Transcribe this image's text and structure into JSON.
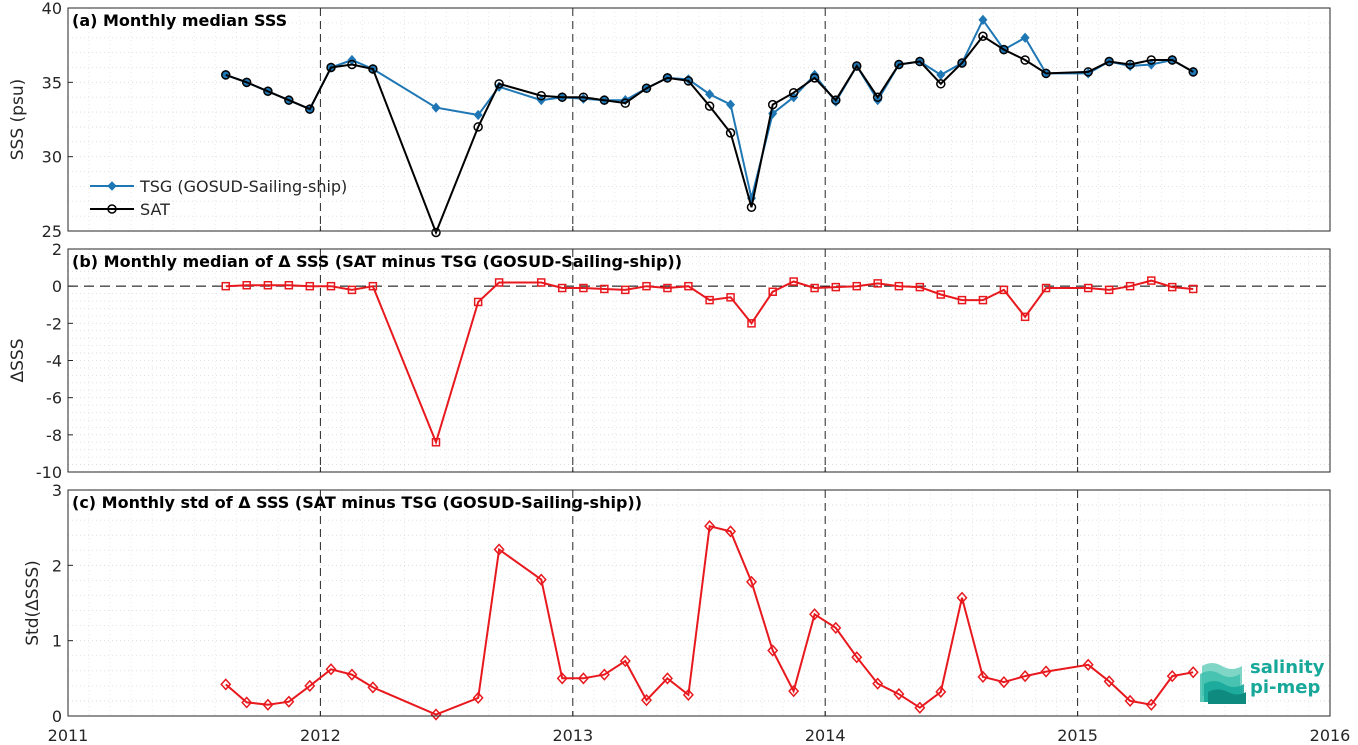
{
  "colors": {
    "tsg": "#1f77b4",
    "sat": "#000000",
    "delta": "#e8191e",
    "logo": "#17a89a"
  },
  "logo": {
    "line1": "salinity",
    "line2": "pi-mep"
  },
  "chart_data": [
    {
      "type": "line",
      "title": "(a) Monthly median SSS",
      "xlabel": "",
      "ylabel": "SSS (psu)",
      "xlim": [
        2011,
        2016
      ],
      "ylim": [
        25,
        40
      ],
      "yticks": [
        25,
        30,
        35,
        40
      ],
      "grid": true,
      "legend_position": "left",
      "series": [
        {
          "name": "TSG (GOSUD-Sailing-ship)",
          "marker": "diamond",
          "x": [
            2011.625,
            2011.708,
            2011.792,
            2011.875,
            2011.958,
            2012.042,
            2012.125,
            2012.208,
            2012.458,
            2012.625,
            2012.708,
            2012.875,
            2012.958,
            2013.042,
            2013.125,
            2013.208,
            2013.292,
            2013.375,
            2013.458,
            2013.542,
            2013.625,
            2013.708,
            2013.792,
            2013.875,
            2013.958,
            2014.042,
            2014.125,
            2014.208,
            2014.292,
            2014.375,
            2014.458,
            2014.542,
            2014.625,
            2014.708,
            2014.792,
            2014.875,
            2015.042,
            2015.125,
            2015.208,
            2015.292,
            2015.375,
            2015.458
          ],
          "y": [
            35.5,
            35.0,
            34.4,
            33.8,
            33.2,
            36.0,
            36.5,
            35.9,
            33.3,
            32.8,
            34.7,
            33.8,
            34.0,
            33.9,
            33.8,
            33.8,
            34.6,
            35.3,
            35.2,
            34.2,
            33.5,
            27.2,
            32.9,
            34.0,
            35.5,
            33.7,
            36.1,
            33.8,
            36.2,
            36.4,
            35.5,
            36.3,
            39.2,
            37.2,
            38.0,
            35.6,
            35.6,
            36.4,
            36.1,
            36.2,
            36.5,
            35.7
          ]
        },
        {
          "name": "SAT",
          "marker": "circle",
          "x": [
            2011.625,
            2011.708,
            2011.792,
            2011.875,
            2011.958,
            2012.042,
            2012.125,
            2012.208,
            2012.458,
            2012.625,
            2012.708,
            2012.875,
            2012.958,
            2013.042,
            2013.125,
            2013.208,
            2013.292,
            2013.375,
            2013.458,
            2013.542,
            2013.625,
            2013.708,
            2013.792,
            2013.875,
            2013.958,
            2014.042,
            2014.125,
            2014.208,
            2014.292,
            2014.375,
            2014.458,
            2014.542,
            2014.625,
            2014.708,
            2014.792,
            2014.875,
            2015.042,
            2015.125,
            2015.208,
            2015.292,
            2015.375,
            2015.458
          ],
          "y": [
            35.5,
            35.0,
            34.4,
            33.8,
            33.2,
            36.0,
            36.2,
            35.9,
            24.9,
            32.0,
            34.9,
            34.1,
            34.0,
            34.0,
            33.8,
            33.6,
            34.6,
            35.3,
            35.1,
            33.4,
            31.6,
            26.6,
            33.5,
            34.3,
            35.3,
            33.8,
            36.1,
            34.0,
            36.2,
            36.4,
            34.9,
            36.3,
            38.1,
            37.2,
            36.5,
            35.6,
            35.7,
            36.4,
            36.2,
            36.5,
            36.5,
            35.7
          ]
        }
      ]
    },
    {
      "type": "line",
      "title": "(b) Monthly median of Δ SSS (SAT minus TSG (GOSUD-Sailing-ship))",
      "xlabel": "",
      "ylabel": "ΔSSS",
      "xlim": [
        2011,
        2016
      ],
      "ylim": [
        -10,
        2
      ],
      "yticks": [
        -10,
        -8,
        -6,
        -4,
        -2,
        0,
        2
      ],
      "grid": true,
      "reference_line": 0,
      "series": [
        {
          "name": "",
          "marker": "square",
          "x": [
            2011.625,
            2011.708,
            2011.792,
            2011.875,
            2011.958,
            2012.042,
            2012.125,
            2012.208,
            2012.458,
            2012.625,
            2012.708,
            2012.875,
            2012.958,
            2013.042,
            2013.125,
            2013.208,
            2013.292,
            2013.375,
            2013.458,
            2013.542,
            2013.625,
            2013.708,
            2013.792,
            2013.875,
            2013.958,
            2014.042,
            2014.125,
            2014.208,
            2014.292,
            2014.375,
            2014.458,
            2014.542,
            2014.625,
            2014.708,
            2014.792,
            2014.875,
            2015.042,
            2015.125,
            2015.208,
            2015.292,
            2015.375,
            2015.458
          ],
          "y": [
            0.0,
            0.05,
            0.05,
            0.05,
            0.0,
            0.0,
            -0.2,
            0.0,
            -8.4,
            -0.85,
            0.2,
            0.2,
            -0.1,
            -0.1,
            -0.15,
            -0.2,
            0.0,
            -0.1,
            0.0,
            -0.75,
            -0.6,
            -2.0,
            -0.3,
            0.25,
            -0.1,
            -0.05,
            0.0,
            0.15,
            0.0,
            -0.05,
            -0.45,
            -0.75,
            -0.75,
            -0.2,
            -1.65,
            -0.1,
            -0.1,
            -0.2,
            0.0,
            0.3,
            -0.05,
            -0.15
          ]
        }
      ]
    },
    {
      "type": "line",
      "title": "(c) Monthly std of Δ SSS (SAT minus TSG (GOSUD-Sailing-ship))",
      "xlabel": "",
      "ylabel": "Std(ΔSSS)",
      "xlim": [
        2011,
        2016
      ],
      "ylim": [
        0,
        3
      ],
      "yticks": [
        0,
        1,
        2,
        3
      ],
      "xticks": [
        2011,
        2012,
        2013,
        2014,
        2015,
        2016
      ],
      "grid": true,
      "series": [
        {
          "name": "",
          "marker": "diamond",
          "x": [
            2011.625,
            2011.708,
            2011.792,
            2011.875,
            2011.958,
            2012.042,
            2012.125,
            2012.208,
            2012.458,
            2012.625,
            2012.708,
            2012.875,
            2012.958,
            2013.042,
            2013.125,
            2013.208,
            2013.292,
            2013.375,
            2013.458,
            2013.542,
            2013.625,
            2013.708,
            2013.792,
            2013.875,
            2013.958,
            2014.042,
            2014.125,
            2014.208,
            2014.292,
            2014.375,
            2014.458,
            2014.542,
            2014.625,
            2014.708,
            2014.792,
            2014.875,
            2015.042,
            2015.125,
            2015.208,
            2015.292,
            2015.375,
            2015.458
          ],
          "y": [
            0.42,
            0.18,
            0.15,
            0.19,
            0.4,
            0.62,
            0.55,
            0.38,
            0.02,
            0.24,
            2.21,
            1.81,
            0.5,
            0.5,
            0.55,
            0.73,
            0.21,
            0.5,
            0.28,
            2.52,
            2.45,
            1.78,
            0.87,
            0.33,
            1.35,
            1.17,
            0.78,
            0.43,
            0.29,
            0.11,
            0.32,
            1.57,
            0.52,
            0.45,
            0.53,
            0.59,
            0.68,
            0.46,
            0.2,
            0.15,
            0.53,
            0.58
          ]
        }
      ]
    }
  ]
}
